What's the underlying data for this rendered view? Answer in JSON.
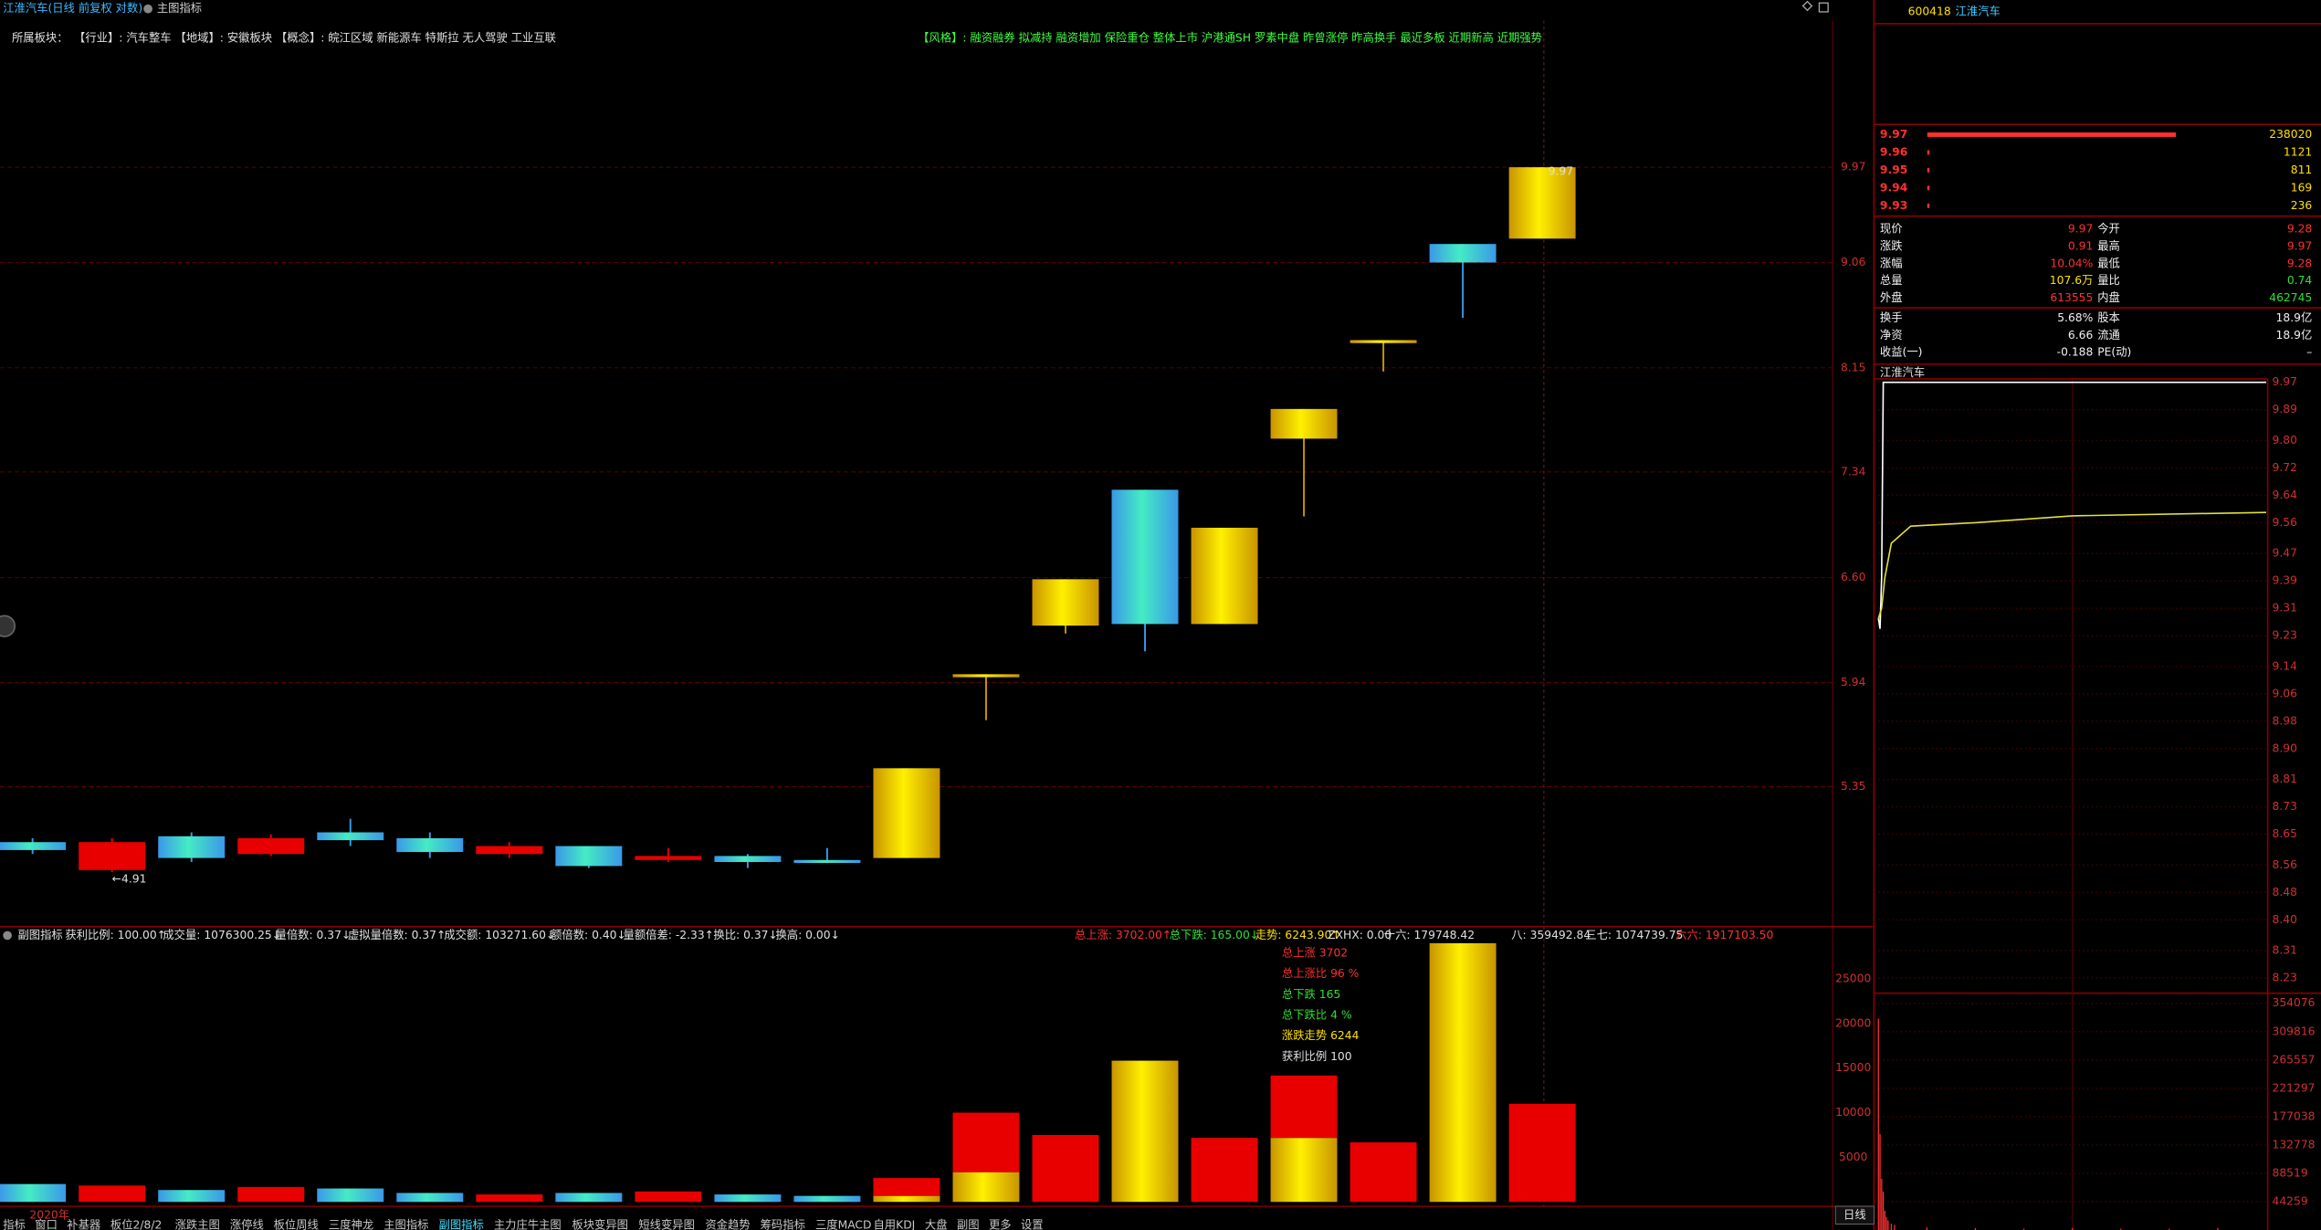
{
  "window": {
    "title": "江淮汽车(日线 前复权 对数)",
    "indicator_button": "主图指标"
  },
  "sector_bar": {
    "label": "所属板块：",
    "text": "【行业】: 汽车整车 【地域】: 安徽板块 【概念】: 皖江区域 新能源车 特斯拉 无人驾驶 工业互联"
  },
  "style_bar": "【风格】: 融资融券 拟减持 融资增加 保险重仓 整体上市 沪港通SH 罗素中盘 昨曾涨停 昨高换手 最近多板 近期新高 近期强势",
  "indicator_header": [
    {
      "text": "副图指标",
      "color": "#e0e0e0"
    },
    {
      "text": "获利比例: 100.00↑",
      "color": "#e0e0e0"
    },
    {
      "text": "成交量: 1076300.25↓",
      "color": "#e0e0e0"
    },
    {
      "text": "量倍数: 0.37↓",
      "color": "#e0e0e0"
    },
    {
      "text": "虚拟量倍数: 0.37↑",
      "color": "#e0e0e0"
    },
    {
      "text": "成交额: 103271.60↓",
      "color": "#e0e0e0"
    },
    {
      "text": "额倍数: 0.40↓",
      "color": "#e0e0e0"
    },
    {
      "text": "量额倍差: -2.33↑",
      "color": "#e0e0e0"
    },
    {
      "text": "换比: 0.37↓",
      "color": "#e0e0e0"
    },
    {
      "text": "换高: 0.00↓",
      "color": "#e0e0e0"
    }
  ],
  "indicator_summary": [
    {
      "text": "总上涨: 3702.00↑",
      "color": "#ff3030"
    },
    {
      "text": "总下跌: 165.00↓",
      "color": "#30e030"
    },
    {
      "text": "走势: 6243.90↑",
      "color": "#ffe000"
    },
    {
      "text": "ZXHX: 0.00",
      "color": "#e0e0e0"
    },
    {
      "text": "十六: 179748.42",
      "color": "#e0e0e0"
    },
    {
      "text": "八: 359492.84",
      "color": "#e0e0e0"
    },
    {
      "text": "三七: 1074739.75",
      "color": "#e0e0e0"
    },
    {
      "text": "六六: 1917103.50",
      "color": "#ff3030"
    }
  ],
  "indicator_legend": [
    {
      "text": "总上涨 3702",
      "color": "#ff3030"
    },
    {
      "text": "总上涨比 96 %",
      "color": "#ff3030"
    },
    {
      "text": "总下跌 165",
      "color": "#30e030"
    },
    {
      "text": "总下跌比 4 %",
      "color": "#30e030"
    },
    {
      "text": "涨跌走势 6244",
      "color": "#ffe000"
    },
    {
      "text": "获利比例 100",
      "color": "#e0e0e0"
    }
  ],
  "date_label": "2020年",
  "period_button": "日线",
  "tabs": [
    "指标",
    "窗口",
    "补基器",
    "板位2/8/2",
    "涨跌主图",
    "涨停线",
    "板位周线",
    "三度神龙",
    "主图指标",
    "副图指标",
    "主力庄牛主图",
    "板块变异图",
    "短线变异图",
    "资金趋势",
    "筹码指标",
    "三度MACD",
    "自用KDJ",
    "大盘",
    "副图",
    "更多",
    "设置"
  ],
  "quote": {
    "code": "600418",
    "name": "江淮汽车",
    "asks": [
      {
        "price": 9.97,
        "volume": 238020
      },
      {
        "price": 9.96,
        "volume": 1121
      },
      {
        "price": 9.95,
        "volume": 811
      },
      {
        "price": 9.94,
        "volume": 169
      },
      {
        "price": 9.93,
        "volume": 236
      }
    ],
    "ask_color": "#ff3030",
    "volume_color": "#ffe000",
    "stats": [
      {
        "label": "现价",
        "value": 9.97,
        "label2": "今开",
        "value2": 9.28,
        "colors": [
          "#ff3030",
          "#ff3030"
        ]
      },
      {
        "label": "涨跌",
        "value": 0.91,
        "label2": "最高",
        "value2": 9.97,
        "colors": [
          "#ff3030",
          "#ff3030"
        ]
      },
      {
        "label": "涨幅",
        "value": "10.04%",
        "label2": "最低",
        "value2": 9.28,
        "colors": [
          "#ff3030",
          "#ff3030"
        ]
      },
      {
        "label": "总量",
        "value": "107.6万",
        "label2": "量比",
        "value2": 0.74,
        "colors": [
          "#ffe000",
          "#30e030"
        ]
      },
      {
        "label": "外盘",
        "value": 613555,
        "label2": "内盘",
        "value2": 462745,
        "colors": [
          "#ff3030",
          "#30e030"
        ]
      }
    ],
    "stats2": [
      {
        "label": "换手",
        "value": "5.68%",
        "label2": "股本",
        "value2": "18.9亿",
        "colors": [
          "#f0f0f0",
          "#f0f0f0"
        ]
      },
      {
        "label": "净资",
        "value": 6.66,
        "label2": "流通",
        "value2": "18.9亿",
        "colors": [
          "#f0f0f0",
          "#f0f0f0"
        ]
      },
      {
        "label": "收益(一)",
        "value": -0.188,
        "label2": "PE(动)",
        "value2": "–",
        "colors": [
          "#f0f0f0",
          "#f0f0f0"
        ]
      }
    ]
  },
  "chart_data": [
    {
      "type": "candlestick",
      "log_scale": true,
      "grid": true,
      "ylim": [
        4.69,
        11.28
      ],
      "yticks": [
        5.35,
        5.94,
        {
          "value": 6.6,
          "label": "6.60"
        },
        7.34,
        8.15,
        9.06,
        9.97
      ],
      "open": [
        5.06,
        4.92,
        5.09,
        5.0,
        5.11,
        5.08,
        5.0,
        5.04,
        4.97,
        4.99,
        4.97,
        4.98,
        5.99,
        6.29,
        7.21,
        6.3,
        7.59,
        8.38,
        9.23,
        9.28
      ],
      "close": [
        5.02,
        5.06,
        4.98,
        5.08,
        5.07,
        5.01,
        5.04,
        4.94,
        4.99,
        4.96,
        4.96,
        5.45,
        5.99,
        6.59,
        6.3,
        6.94,
        7.82,
        8.38,
        9.06,
        9.97
      ],
      "high": [
        5.08,
        5.08,
        5.11,
        5.1,
        5.18,
        5.11,
        5.06,
        5.04,
        5.03,
        5.0,
        5.03,
        5.45,
        5.99,
        6.59,
        7.21,
        6.94,
        7.82,
        8.38,
        9.23,
        9.97
      ],
      "low": [
        5.0,
        4.91,
        4.96,
        4.99,
        5.04,
        4.98,
        4.98,
        4.93,
        4.96,
        4.93,
        4.96,
        4.98,
        5.72,
        6.24,
        6.13,
        6.3,
        7.02,
        8.12,
        8.57,
        9.28
      ],
      "colors": [
        "c",
        "r",
        "c",
        "r",
        "c",
        "c",
        "r",
        "c",
        "r",
        "c",
        "c",
        "y",
        "y",
        "y",
        "c",
        "y",
        "y",
        "y",
        "c",
        "y"
      ],
      "palette": {
        "c": [
          "#44ecc4",
          "#3a98e8"
        ],
        "r": [
          "#e80000",
          "#e80000"
        ],
        "y": [
          "#fff000",
          "#c89400"
        ]
      },
      "low_label": "←4.91",
      "high_label": 9.97
    },
    {
      "type": "bar",
      "stacked": true,
      "grid": false,
      "ylim": [
        0,
        30700
      ],
      "yticks": [
        5000,
        10000,
        15000,
        20000,
        25000
      ],
      "palette": {
        "c": [
          "#44ecc4",
          "#3a98e8"
        ],
        "r": [
          "#e80000",
          "#e80000"
        ],
        "y": [
          "#fff000",
          "#c89400"
        ]
      },
      "series": [
        {
          "colors": [
            "c",
            "r",
            "c",
            "r",
            "c",
            "c",
            "r",
            "c",
            "r",
            "c",
            "c",
            "y",
            "y",
            "r",
            "y",
            "r",
            "y",
            "r",
            "y",
            "r"
          ],
          "values": [
            2000,
            1830,
            1330,
            1670,
            1500,
            1000,
            830,
            1000,
            1170,
            830,
            670,
            670,
            3330,
            7500,
            15830,
            7170,
            7170,
            6670,
            29000,
            11000
          ]
        },
        {
          "colors": [
            "r",
            "r",
            "r",
            "r",
            "r",
            "r",
            "r",
            "r",
            "r",
            "r",
            "r",
            "r",
            "r",
            "r",
            "r",
            "r",
            "r",
            "r",
            "r",
            "r"
          ],
          "values": [
            null,
            null,
            null,
            null,
            null,
            null,
            null,
            null,
            null,
            null,
            null,
            2000,
            6670,
            null,
            null,
            null,
            7000,
            null,
            null,
            null
          ]
        }
      ]
    },
    {
      "type": "line",
      "title": "江淮汽车",
      "grid": true,
      "xlim": [
        0,
        240
      ],
      "ylim": [
        8.19,
        9.98
      ],
      "yticks": [
        9.97,
        9.89,
        {
          "value": 9.8,
          "label": "9.80"
        },
        9.72,
        9.64,
        9.56,
        9.47,
        9.39,
        9.31,
        9.23,
        9.14,
        9.06,
        8.98,
        {
          "value": 8.9,
          "label": "8.90"
        },
        8.81,
        8.73,
        8.65,
        8.56,
        8.48,
        {
          "value": 8.4,
          "label": "8.40"
        },
        8.31,
        8.23
      ],
      "series": [
        {
          "color": "#ffffff",
          "x": [
            0,
            1,
            2,
            3,
            4,
            240
          ],
          "values": [
            9.28,
            9.25,
            9.4,
            9.97,
            9.97,
            9.97
          ]
        },
        {
          "color": "#e0e040",
          "x": [
            0,
            2,
            4,
            8,
            20,
            60,
            120,
            240
          ],
          "values": [
            9.28,
            9.31,
            9.4,
            9.5,
            9.55,
            9.56,
            9.58,
            9.59
          ]
        }
      ]
    },
    {
      "type": "bar",
      "grid": true,
      "color": "#ff3030",
      "xlim": [
        0,
        240
      ],
      "ylim": [
        0,
        367600
      ],
      "yticks": [
        354076,
        309816,
        265557,
        221297,
        177038,
        132778,
        88519,
        44259
      ],
      "x": [
        0,
        1,
        2,
        3,
        4,
        5,
        6,
        8,
        10,
        30,
        60,
        90,
        120,
        150,
        180,
        210
      ],
      "values": [
        330000,
        150000,
        80000,
        60000,
        30000,
        20000,
        15000,
        10000,
        8000,
        4000,
        3000,
        2000,
        3000,
        2000,
        2000,
        3000
      ]
    }
  ]
}
